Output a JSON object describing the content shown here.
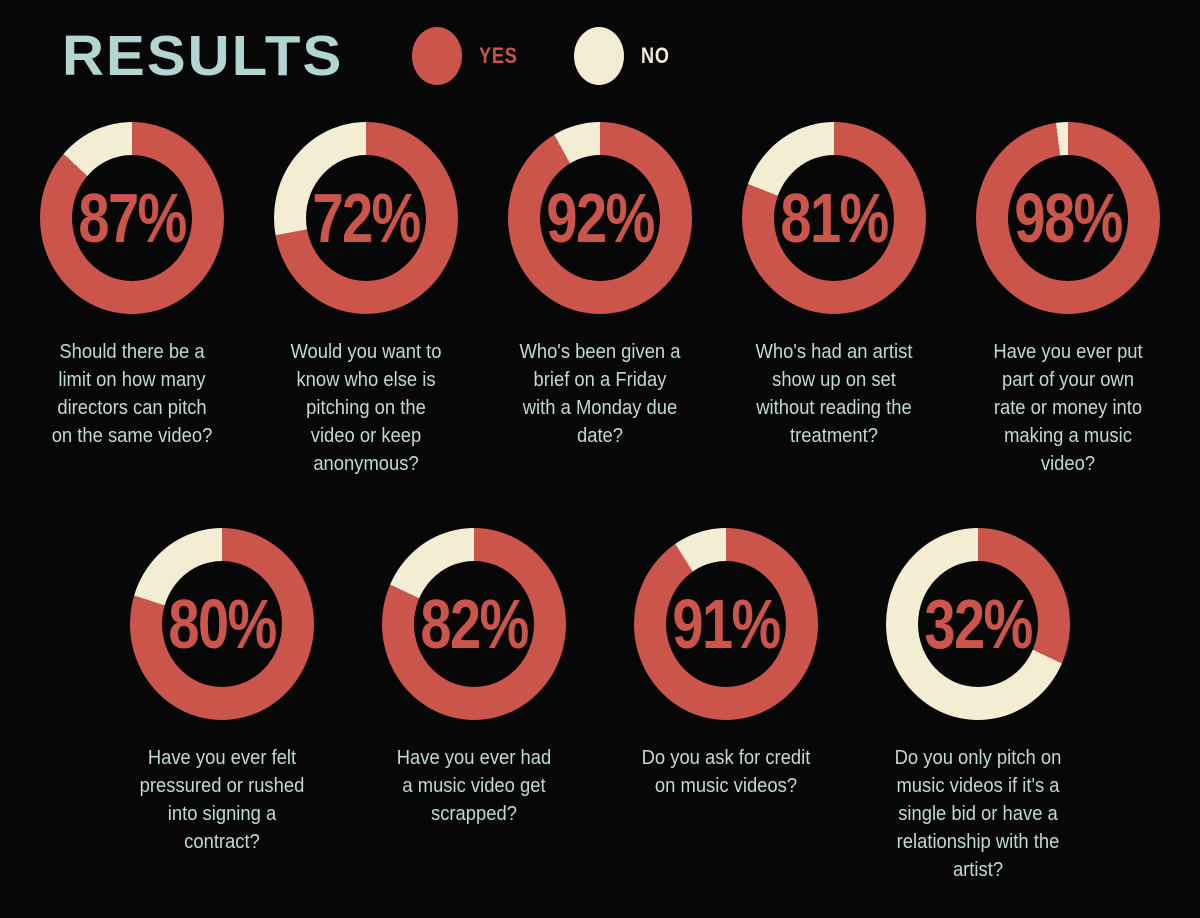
{
  "colors": {
    "yes": "#cb544b",
    "no": "#f2edd3",
    "text": "#bedad4",
    "title": "#b3d5d1",
    "bg": "#080707"
  },
  "chart_data": {
    "type": "donut",
    "title": "RESULTS",
    "legend": [
      "YES",
      "NO"
    ],
    "legend_position": "top",
    "colors": {
      "yes": "#cb544b",
      "no": "#f2edd3"
    },
    "rows": [
      [
        {
          "question": "Should there be a\nlimit on how many\ndirectors can pitch\non the same video?",
          "yes": 87,
          "no": 13,
          "yes_label": "87%"
        },
        {
          "question": "Would you want to\nknow who else is\npitching on the\nvideo or keep\nanonymous?",
          "yes": 72,
          "no": 28,
          "yes_label": "72%"
        },
        {
          "question": "Who's been given a\nbrief on a Friday\nwith a Monday due\ndate?",
          "yes": 92,
          "no": 8,
          "yes_label": "92%"
        },
        {
          "question": "Who's had an artist\nshow up on set\nwithout reading the\ntreatment?",
          "yes": 81,
          "no": 19,
          "yes_label": "81%"
        },
        {
          "question": "Have you ever put\npart of your own\nrate or money into\nmaking a music\nvideo?",
          "yes": 98,
          "no": 2,
          "yes_label": "98%"
        }
      ],
      [
        {
          "question": "Have you ever felt\npressured or rushed\ninto signing a\ncontract?",
          "yes": 80,
          "no": 20,
          "yes_label": "80%"
        },
        {
          "question": "Have you ever had\na music video get\nscrapped?",
          "yes": 82,
          "no": 18,
          "yes_label": "82%"
        },
        {
          "question": "Do you ask for credit\non music videos?",
          "yes": 91,
          "no": 9,
          "yes_label": "91%"
        },
        {
          "question": "Do you only pitch on\nmusic videos if it's a\nsingle bid or have a\nrelationship with the\nartist?",
          "yes": 32,
          "no": 68,
          "yes_label": "32%"
        }
      ]
    ]
  }
}
